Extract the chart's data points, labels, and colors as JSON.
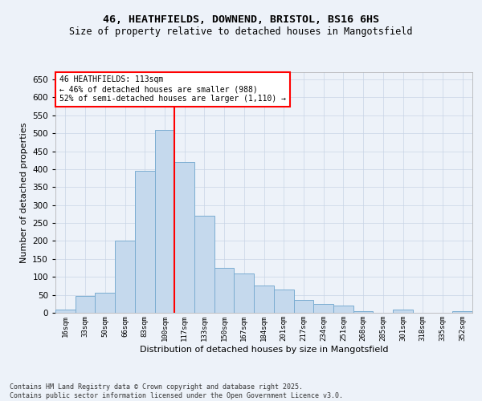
{
  "title1": "46, HEATHFIELDS, DOWNEND, BRISTOL, BS16 6HS",
  "title2": "Size of property relative to detached houses in Mangotsfield",
  "xlabel": "Distribution of detached houses by size in Mangotsfield",
  "ylabel": "Number of detached properties",
  "annotation_line1": "46 HEATHFIELDS: 113sqm",
  "annotation_line2": "← 46% of detached houses are smaller (988)",
  "annotation_line3": "52% of semi-detached houses are larger (1,110) →",
  "footer1": "Contains HM Land Registry data © Crown copyright and database right 2025.",
  "footer2": "Contains public sector information licensed under the Open Government Licence v3.0.",
  "bar_color": "#c5d9ed",
  "bar_edge_color": "#7badd1",
  "vline_color": "red",
  "vline_x_idx": 6,
  "categories": [
    "16sqm",
    "33sqm",
    "50sqm",
    "66sqm",
    "83sqm",
    "100sqm",
    "117sqm",
    "133sqm",
    "150sqm",
    "167sqm",
    "184sqm",
    "201sqm",
    "217sqm",
    "234sqm",
    "251sqm",
    "268sqm",
    "285sqm",
    "301sqm",
    "318sqm",
    "335sqm",
    "352sqm"
  ],
  "values": [
    10,
    48,
    55,
    200,
    395,
    510,
    420,
    270,
    125,
    110,
    75,
    65,
    35,
    25,
    20,
    5,
    0,
    8,
    0,
    0,
    5
  ],
  "ylim": [
    0,
    670
  ],
  "yticks": [
    0,
    50,
    100,
    150,
    200,
    250,
    300,
    350,
    400,
    450,
    500,
    550,
    600,
    650
  ],
  "bg_color": "#edf2f9",
  "grid_color": "#c8d4e6",
  "annotation_box_facecolor": "white",
  "annotation_box_edgecolor": "red",
  "title1_fontsize": 9.5,
  "title2_fontsize": 8.5
}
